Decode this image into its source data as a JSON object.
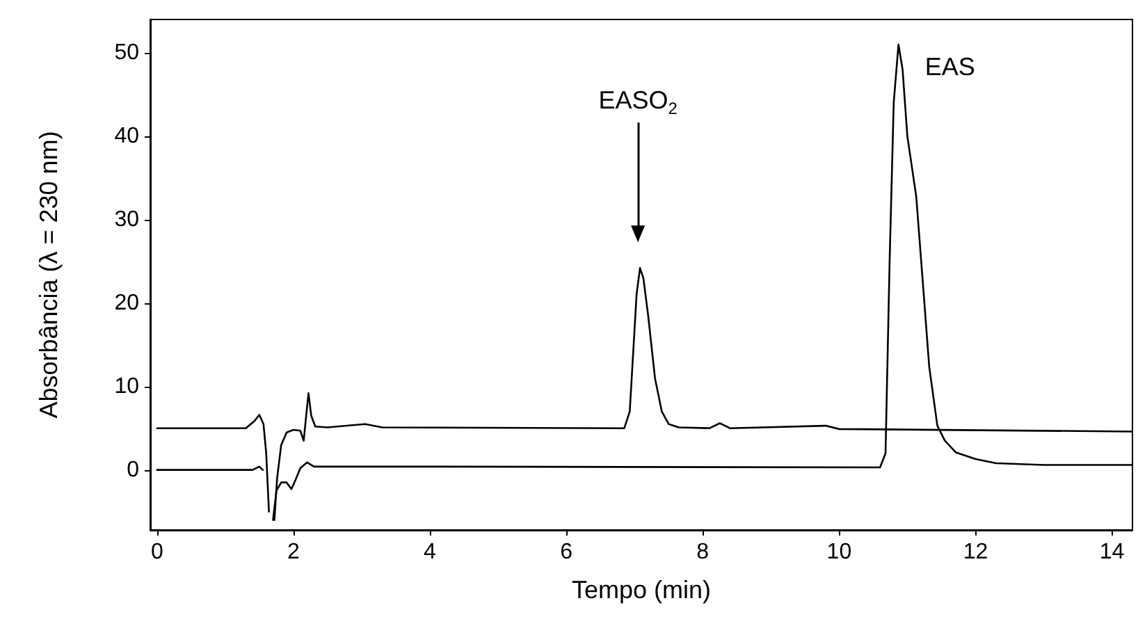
{
  "chart_data": {
    "type": "line",
    "xlabel": "Tempo (min)",
    "ylabel": "Absorbância (λ = 230 nm)",
    "xlim": [
      -0.1,
      14.3
    ],
    "xticks": [
      0,
      2,
      4,
      6,
      8,
      10,
      12,
      14
    ],
    "ylim": [
      -7.2,
      54
    ],
    "yticks": [
      0,
      10,
      20,
      30,
      40,
      50
    ],
    "grid": false,
    "marker": "none",
    "line_style": "solid",
    "series": [
      {
        "color": "#000000",
        "x": [
          0,
          0.9,
          1.3,
          1.42,
          1.5,
          1.56,
          1.6,
          1.64,
          1.68,
          1.72,
          1.76,
          1.82,
          1.9,
          2.0,
          2.1,
          2.15,
          2.18,
          2.22,
          2.26,
          2.32,
          2.5,
          3.05,
          3.3,
          6.85,
          6.93,
          6.98,
          7.03,
          7.08,
          7.13,
          7.2,
          7.3,
          7.4,
          7.5,
          7.65,
          8.1,
          8.25,
          8.4,
          9.8,
          10,
          11.5,
          14.3
        ],
        "values": [
          5,
          5,
          5,
          5.8,
          6.6,
          5.5,
          2,
          -5,
          null,
          -6,
          -1,
          3,
          4.5,
          4.8,
          4.7,
          3.5,
          6,
          9.2,
          6.5,
          5.2,
          5.1,
          5.5,
          5.1,
          5,
          7,
          14,
          21,
          24.2,
          23,
          18.5,
          11,
          7,
          5.5,
          5.1,
          5,
          5.6,
          5,
          5.3,
          4.9,
          4.8,
          4.6
        ]
      },
      {
        "color": "#000000",
        "x": [
          0,
          1.4,
          1.5,
          1.55,
          1.58,
          1.66,
          1.7,
          1.75,
          1.82,
          1.9,
          1.97,
          2.03,
          2.1,
          2.2,
          2.3,
          4,
          10.6,
          10.68,
          10.74,
          10.8,
          10.87,
          10.93,
          11.0,
          11.13,
          11.25,
          11.32,
          11.44,
          11.55,
          11.71,
          12.0,
          12.3,
          13,
          14.3
        ],
        "values": [
          0,
          0,
          0.4,
          0,
          null,
          null,
          -6,
          -2.5,
          -1.5,
          -1.5,
          -2.3,
          -1.2,
          0.2,
          0.9,
          0.4,
          0.4,
          0.3,
          2,
          25,
          44,
          51,
          48,
          40,
          32.8,
          20,
          12.4,
          5.3,
          3.5,
          2.1,
          1.3,
          0.8,
          0.6,
          0.6
        ]
      }
    ],
    "annotations": [
      {
        "text": "EASO$_{2}$",
        "x": 7.05,
        "y": 28.3
      },
      {
        "text": "EAS",
        "x": 10.87,
        "y": 51
      }
    ]
  }
}
